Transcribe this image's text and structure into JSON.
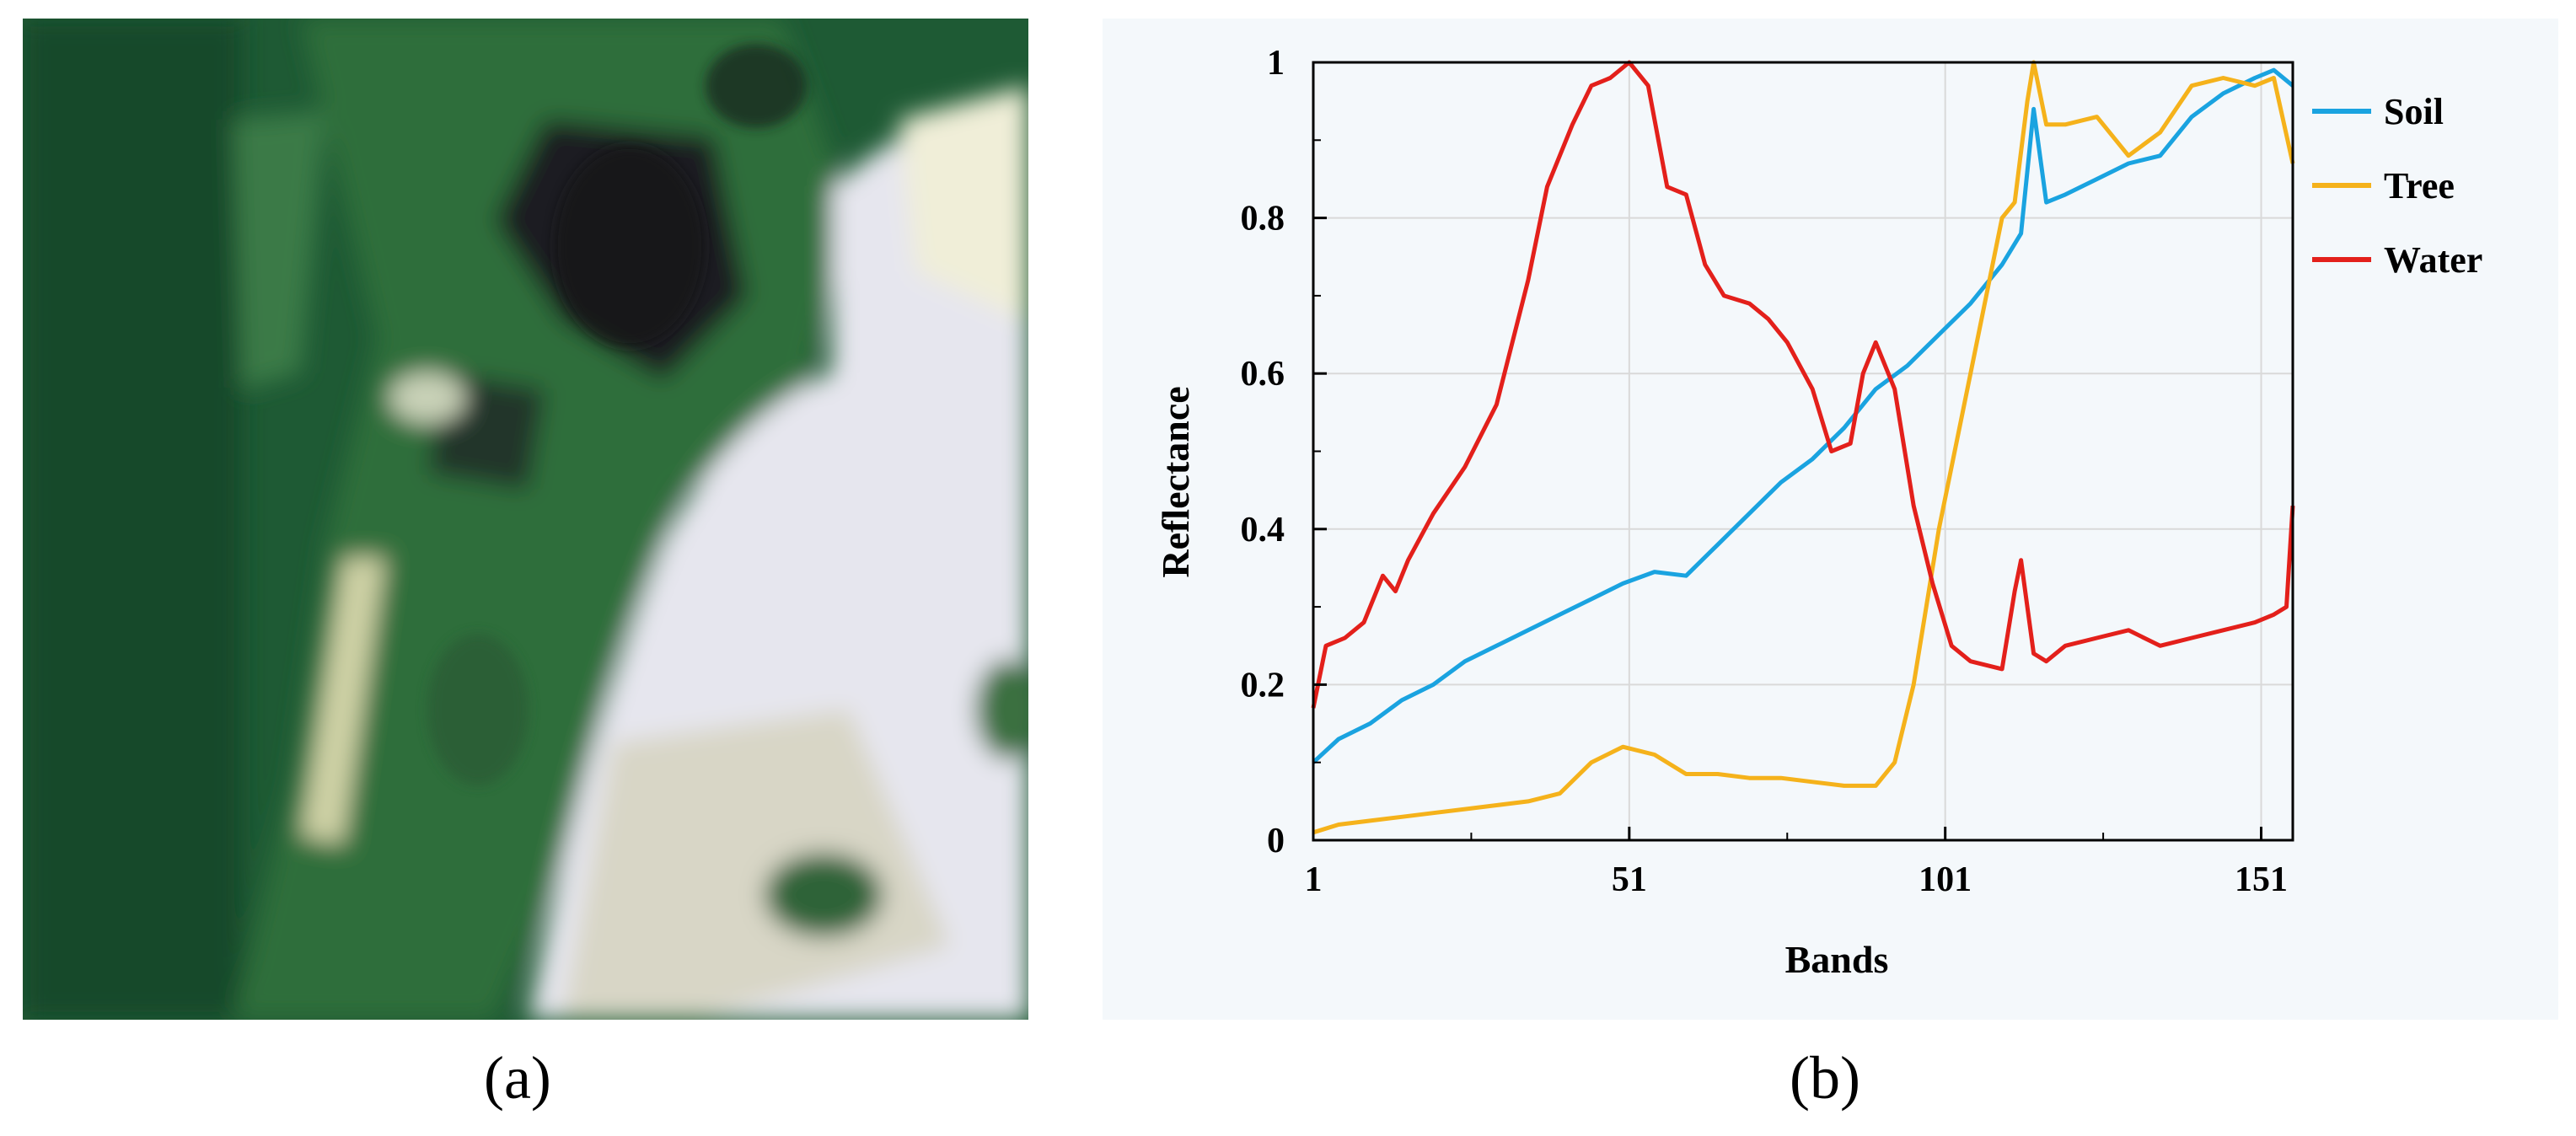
{
  "panels": {
    "a": {
      "caption": "(a)",
      "image": "satellite-image-of-shoreline-with-trees-soil-and-water"
    },
    "b": {
      "caption": "(b)"
    }
  },
  "chart_data": {
    "type": "line",
    "xlabel": "Bands",
    "ylabel": "Reflectance",
    "xlim": [
      1,
      156
    ],
    "ylim": [
      0,
      1
    ],
    "xticks": [
      1,
      51,
      101,
      151
    ],
    "xtick_labels": [
      "1",
      "51",
      "101",
      "151"
    ],
    "yticks": [
      0,
      0.2,
      0.4,
      0.6,
      0.8,
      1
    ],
    "ytick_labels": [
      "0",
      "0.2",
      "0.4",
      "0.6",
      "0.8",
      "1"
    ],
    "grid": true,
    "legend_position": "right",
    "series": [
      {
        "name": "Soil",
        "color": "#1aa3e0",
        "x": [
          1,
          5,
          10,
          15,
          20,
          25,
          30,
          35,
          40,
          45,
          50,
          55,
          60,
          65,
          70,
          75,
          80,
          85,
          90,
          95,
          100,
          105,
          110,
          113,
          115,
          117,
          120,
          125,
          130,
          135,
          140,
          145,
          150,
          153,
          156
        ],
        "values": [
          0.1,
          0.13,
          0.15,
          0.18,
          0.2,
          0.23,
          0.25,
          0.27,
          0.29,
          0.31,
          0.33,
          0.345,
          0.34,
          0.38,
          0.42,
          0.46,
          0.49,
          0.53,
          0.58,
          0.61,
          0.65,
          0.69,
          0.74,
          0.78,
          0.94,
          0.82,
          0.83,
          0.85,
          0.87,
          0.88,
          0.93,
          0.96,
          0.98,
          0.99,
          0.97
        ]
      },
      {
        "name": "Tree",
        "color": "#f5b21b",
        "x": [
          1,
          5,
          10,
          15,
          20,
          25,
          30,
          35,
          40,
          45,
          50,
          55,
          60,
          65,
          70,
          75,
          80,
          85,
          90,
          93,
          96,
          100,
          105,
          110,
          112,
          114,
          115,
          117,
          120,
          125,
          130,
          135,
          140,
          145,
          150,
          153,
          156
        ],
        "values": [
          0.01,
          0.02,
          0.025,
          0.03,
          0.035,
          0.04,
          0.045,
          0.05,
          0.06,
          0.1,
          0.12,
          0.11,
          0.085,
          0.085,
          0.08,
          0.08,
          0.075,
          0.07,
          0.07,
          0.1,
          0.2,
          0.4,
          0.6,
          0.8,
          0.82,
          0.95,
          1.0,
          0.92,
          0.92,
          0.93,
          0.88,
          0.91,
          0.97,
          0.98,
          0.97,
          0.98,
          0.87
        ]
      },
      {
        "name": "Water",
        "color": "#e3201b",
        "x": [
          1,
          3,
          6,
          9,
          12,
          14,
          16,
          20,
          25,
          30,
          35,
          38,
          42,
          45,
          48,
          51,
          54,
          57,
          60,
          63,
          66,
          70,
          73,
          76,
          80,
          83,
          86,
          88,
          90,
          93,
          96,
          99,
          102,
          105,
          110,
          112,
          113,
          115,
          117,
          120,
          125,
          130,
          135,
          140,
          145,
          150,
          153,
          155,
          156
        ],
        "values": [
          0.17,
          0.25,
          0.26,
          0.28,
          0.34,
          0.32,
          0.36,
          0.42,
          0.48,
          0.56,
          0.72,
          0.84,
          0.92,
          0.97,
          0.98,
          1.0,
          0.97,
          0.84,
          0.83,
          0.74,
          0.7,
          0.69,
          0.67,
          0.64,
          0.58,
          0.5,
          0.51,
          0.6,
          0.64,
          0.58,
          0.43,
          0.33,
          0.25,
          0.23,
          0.22,
          0.32,
          0.36,
          0.24,
          0.23,
          0.25,
          0.26,
          0.27,
          0.25,
          0.26,
          0.27,
          0.28,
          0.29,
          0.3,
          0.43
        ]
      }
    ]
  }
}
